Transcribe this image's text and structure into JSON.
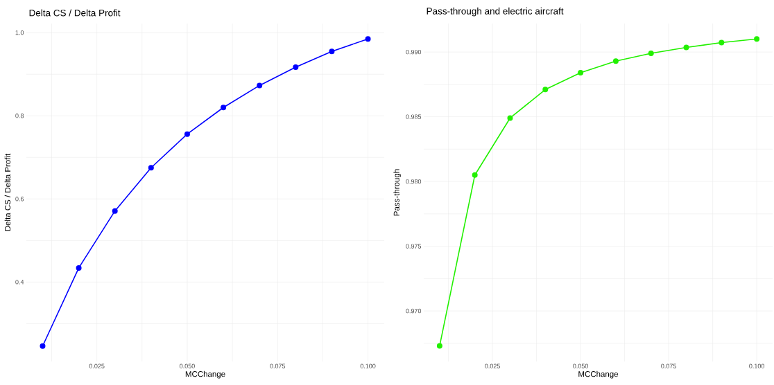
{
  "chart_data": [
    {
      "type": "line",
      "title": "Delta CS / Delta Profit",
      "xlabel": "MCChange",
      "ylabel": "Delta CS / Delta Profit",
      "color": "#0000ff",
      "marker": "circle",
      "line_style": "solid",
      "grid": true,
      "x": [
        0.01,
        0.02,
        0.03,
        0.04,
        0.05,
        0.06,
        0.07,
        0.08,
        0.09,
        0.1
      ],
      "values": [
        0.246,
        0.434,
        0.571,
        0.675,
        0.756,
        0.82,
        0.873,
        0.917,
        0.955,
        0.985
      ],
      "xlim": [
        0.0055,
        0.1045
      ],
      "ylim": [
        0.209,
        1.022
      ],
      "xticks": [
        {
          "value": 0.0125,
          "label": null
        },
        {
          "value": 0.025,
          "label": "0.025"
        },
        {
          "value": 0.0375,
          "label": null
        },
        {
          "value": 0.05,
          "label": "0.050"
        },
        {
          "value": 0.0625,
          "label": null
        },
        {
          "value": 0.075,
          "label": "0.075"
        },
        {
          "value": 0.0875,
          "label": null
        },
        {
          "value": 0.1,
          "label": "0.100"
        }
      ],
      "yticks": [
        {
          "value": 0.3,
          "label": null
        },
        {
          "value": 0.4,
          "label": "0.4"
        },
        {
          "value": 0.5,
          "label": null
        },
        {
          "value": 0.6,
          "label": "0.6"
        },
        {
          "value": 0.7,
          "label": null
        },
        {
          "value": 0.8,
          "label": "0.8"
        },
        {
          "value": 0.9,
          "label": null
        },
        {
          "value": 1.0,
          "label": "1.0"
        }
      ]
    },
    {
      "type": "line",
      "title": "Pass-through and electric aircraft",
      "xlabel": "MCChange",
      "ylabel": "Pass-through",
      "color": "#22f000",
      "marker": "circle",
      "line_style": "solid",
      "grid": true,
      "x": [
        0.01,
        0.02,
        0.03,
        0.04,
        0.05,
        0.06,
        0.07,
        0.08,
        0.09,
        0.1
      ],
      "values": [
        0.9673,
        0.9805,
        0.9849,
        0.9871,
        0.9884,
        0.9893,
        0.9899,
        0.99035,
        0.99073,
        0.99101
      ],
      "xlim": [
        0.0055,
        0.1045
      ],
      "ylim": [
        0.9661,
        0.9922
      ],
      "xticks": [
        {
          "value": 0.0125,
          "label": null
        },
        {
          "value": 0.025,
          "label": "0.025"
        },
        {
          "value": 0.0375,
          "label": null
        },
        {
          "value": 0.05,
          "label": "0.050"
        },
        {
          "value": 0.0625,
          "label": null
        },
        {
          "value": 0.075,
          "label": "0.075"
        },
        {
          "value": 0.0875,
          "label": null
        },
        {
          "value": 0.1,
          "label": "0.100"
        }
      ],
      "yticks": [
        {
          "value": 0.9675,
          "label": null
        },
        {
          "value": 0.97,
          "label": "0.970"
        },
        {
          "value": 0.9725,
          "label": null
        },
        {
          "value": 0.975,
          "label": "0.975"
        },
        {
          "value": 0.9775,
          "label": null
        },
        {
          "value": 0.98,
          "label": "0.980"
        },
        {
          "value": 0.9825,
          "label": null
        },
        {
          "value": 0.985,
          "label": "0.985"
        },
        {
          "value": 0.9875,
          "label": null
        },
        {
          "value": 0.99,
          "label": "0.990"
        }
      ]
    }
  ]
}
